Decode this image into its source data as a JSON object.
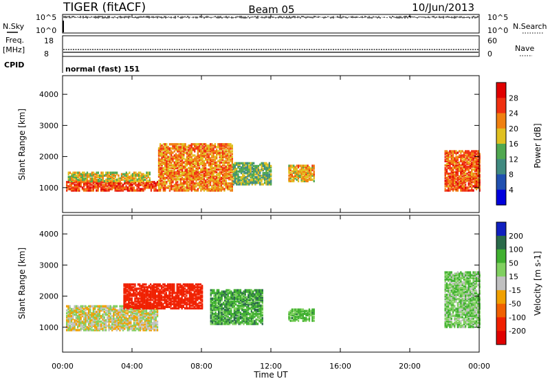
{
  "header": {
    "radar": "TIGER (fitACF)",
    "beam": "Beam 05",
    "date": "10/Jun/2013"
  },
  "sky_panel": {
    "left_label": "N.Sky",
    "right_label": "N.Search",
    "left_ticks": [
      "10^5",
      "10^0"
    ],
    "right_ticks": [
      "10^5",
      "10^0"
    ]
  },
  "freq_panel": {
    "left_label_1": "Freq.",
    "left_label_2": "[MHz]",
    "right_label": "Nave",
    "left_ticks": [
      "18",
      "8"
    ],
    "right_ticks": [
      "60",
      "0"
    ]
  },
  "cpid": {
    "label": "CPID",
    "value": "normal (fast) 151"
  },
  "chart_data": [
    {
      "type": "heatmap",
      "title": "Power",
      "ylabel": "Slant Range [km]",
      "xlabel": "Time UT",
      "ylim": [
        200,
        4600
      ],
      "xlim": [
        0,
        24
      ],
      "yticks": [
        1000,
        2000,
        3000,
        4000
      ],
      "xtick_labels": [
        "00:00",
        "04:00",
        "08:00",
        "12:00",
        "16:00",
        "20:00",
        "00:00"
      ],
      "colorbar": {
        "label": "Power [dB]",
        "ticks": [
          "4",
          "8",
          "12",
          "16",
          "20",
          "24",
          "28"
        ],
        "colors": [
          "#0000dd",
          "#2050b0",
          "#408a80",
          "#50a850",
          "#e0c020",
          "#f08010",
          "#f03010",
          "#e00000"
        ]
      },
      "features": [
        {
          "time": [
            0.2,
            5.5
          ],
          "range": [
            900,
            1200
          ],
          "value": 26
        },
        {
          "time": [
            0.3,
            5.0
          ],
          "range": [
            1200,
            1500
          ],
          "value": 18
        },
        {
          "time": [
            5.5,
            9.8
          ],
          "range": [
            900,
            2400
          ],
          "value": 22
        },
        {
          "time": [
            9.8,
            12.0
          ],
          "range": [
            1100,
            1800
          ],
          "value": 14
        },
        {
          "time": [
            13.0,
            14.5
          ],
          "range": [
            1200,
            1700
          ],
          "value": 20
        },
        {
          "time": [
            22.0,
            24.0
          ],
          "range": [
            900,
            2200
          ],
          "value": 24
        }
      ]
    },
    {
      "type": "heatmap",
      "title": "Velocity",
      "ylabel": "Slant Range [km]",
      "xlabel": "Time UT",
      "ylim": [
        200,
        4600
      ],
      "xlim": [
        0,
        24
      ],
      "yticks": [
        1000,
        2000,
        3000,
        4000
      ],
      "xtick_labels": [
        "00:00",
        "04:00",
        "08:00",
        "12:00",
        "16:00",
        "20:00",
        "00:00"
      ],
      "colorbar": {
        "label": "Velocity [m s-1]",
        "ticks": [
          "200",
          "100",
          "50",
          "15",
          "-15",
          "-50",
          "-100",
          "-200"
        ],
        "colors": [
          "#1020c0",
          "#2a6a4a",
          "#40b030",
          "#80d060",
          "#c0c0c0",
          "#f0a000",
          "#f06000",
          "#f02000",
          "#e00000"
        ]
      },
      "features": [
        {
          "time": [
            0.2,
            5.5
          ],
          "range": [
            900,
            1700
          ],
          "value": 0
        },
        {
          "time": [
            3.5,
            8.0
          ],
          "range": [
            1600,
            2400
          ],
          "value": -150
        },
        {
          "time": [
            8.5,
            11.5
          ],
          "range": [
            1100,
            2200
          ],
          "value": 80
        },
        {
          "time": [
            13.0,
            14.5
          ],
          "range": [
            1200,
            1600
          ],
          "value": 60
        },
        {
          "time": [
            22.0,
            24.0
          ],
          "range": [
            1000,
            2800
          ],
          "value": 40
        }
      ]
    }
  ],
  "footer": {
    "xlabel": "Time UT"
  }
}
